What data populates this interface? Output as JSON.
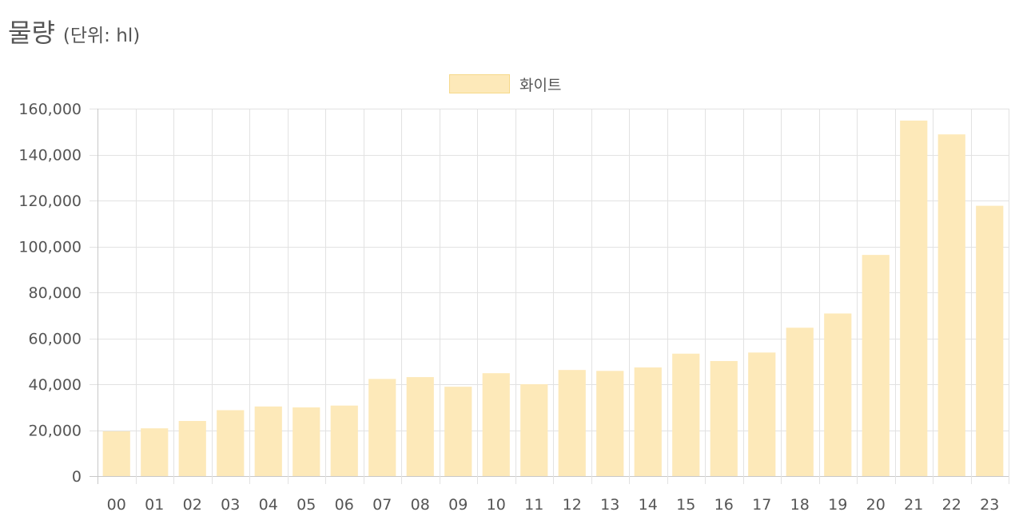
{
  "header": {
    "title": "물량",
    "unit": "(단위: hl)"
  },
  "chart_data": {
    "type": "bar",
    "categories": [
      "00",
      "01",
      "02",
      "03",
      "04",
      "05",
      "06",
      "07",
      "08",
      "09",
      "10",
      "11",
      "12",
      "13",
      "14",
      "15",
      "16",
      "17",
      "18",
      "19",
      "20",
      "21",
      "22",
      "23"
    ],
    "series": [
      {
        "name": "화이트",
        "color": "#fde9b9",
        "values": [
          19500,
          20800,
          24000,
          28700,
          30300,
          29900,
          30700,
          42300,
          43100,
          38900,
          44800,
          40000,
          46200,
          45800,
          47300,
          53300,
          50100,
          53800,
          64600,
          70800,
          96300,
          154800,
          148800,
          117700
        ]
      }
    ],
    "ylim": [
      0,
      160000
    ],
    "yticks": [
      0,
      20000,
      40000,
      60000,
      80000,
      100000,
      120000,
      140000,
      160000
    ],
    "ytick_labels": [
      "0",
      "20,000",
      "40,000",
      "60,000",
      "80,000",
      "100,000",
      "120,000",
      "140,000",
      "160,000"
    ],
    "grid": true,
    "legend_position": "top-center"
  }
}
